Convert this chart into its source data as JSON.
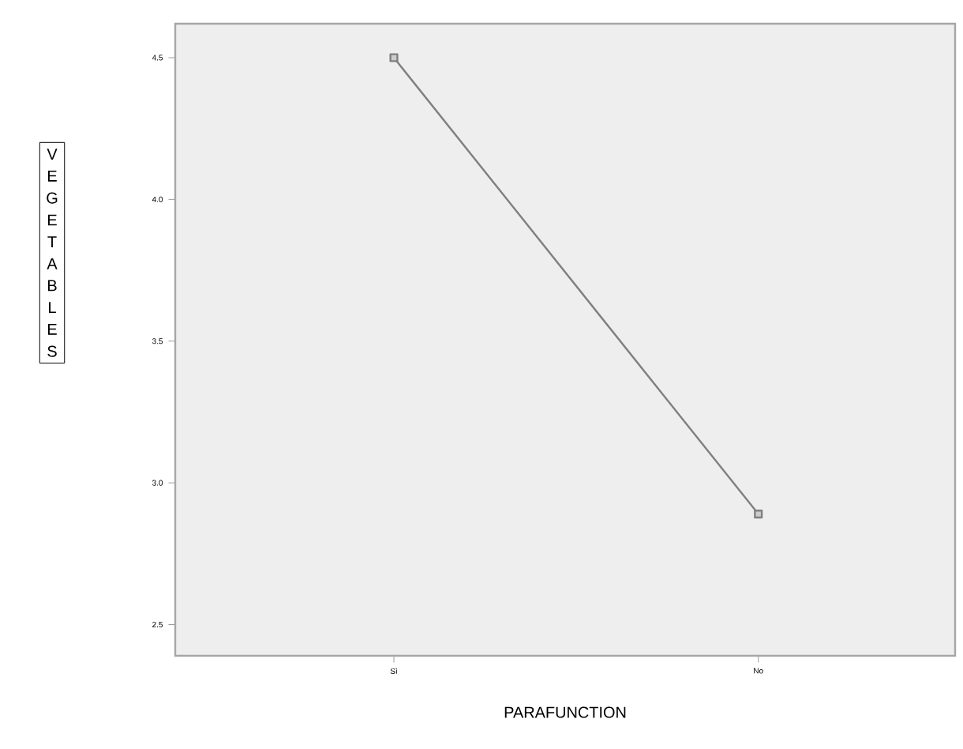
{
  "chart_data": {
    "type": "line",
    "xlabel": "PARAFUNCTION",
    "ylabel": "VEGETABLES",
    "categories": [
      "Sì",
      "No"
    ],
    "series": [
      {
        "color": "#7f7f7f",
        "values": [
          4.5,
          2.89
        ]
      }
    ],
    "ylim": [
      2.39,
      4.62
    ],
    "yticks": [
      {
        "value": 2.5,
        "label": "2.5"
      },
      {
        "value": 3.0,
        "label": "3.0"
      },
      {
        "value": 3.5,
        "label": "3.5"
      },
      {
        "value": 4.0,
        "label": "4.0"
      },
      {
        "value": 4.5,
        "label": "4.5"
      }
    ],
    "marker": "square",
    "line_style": "solid"
  }
}
